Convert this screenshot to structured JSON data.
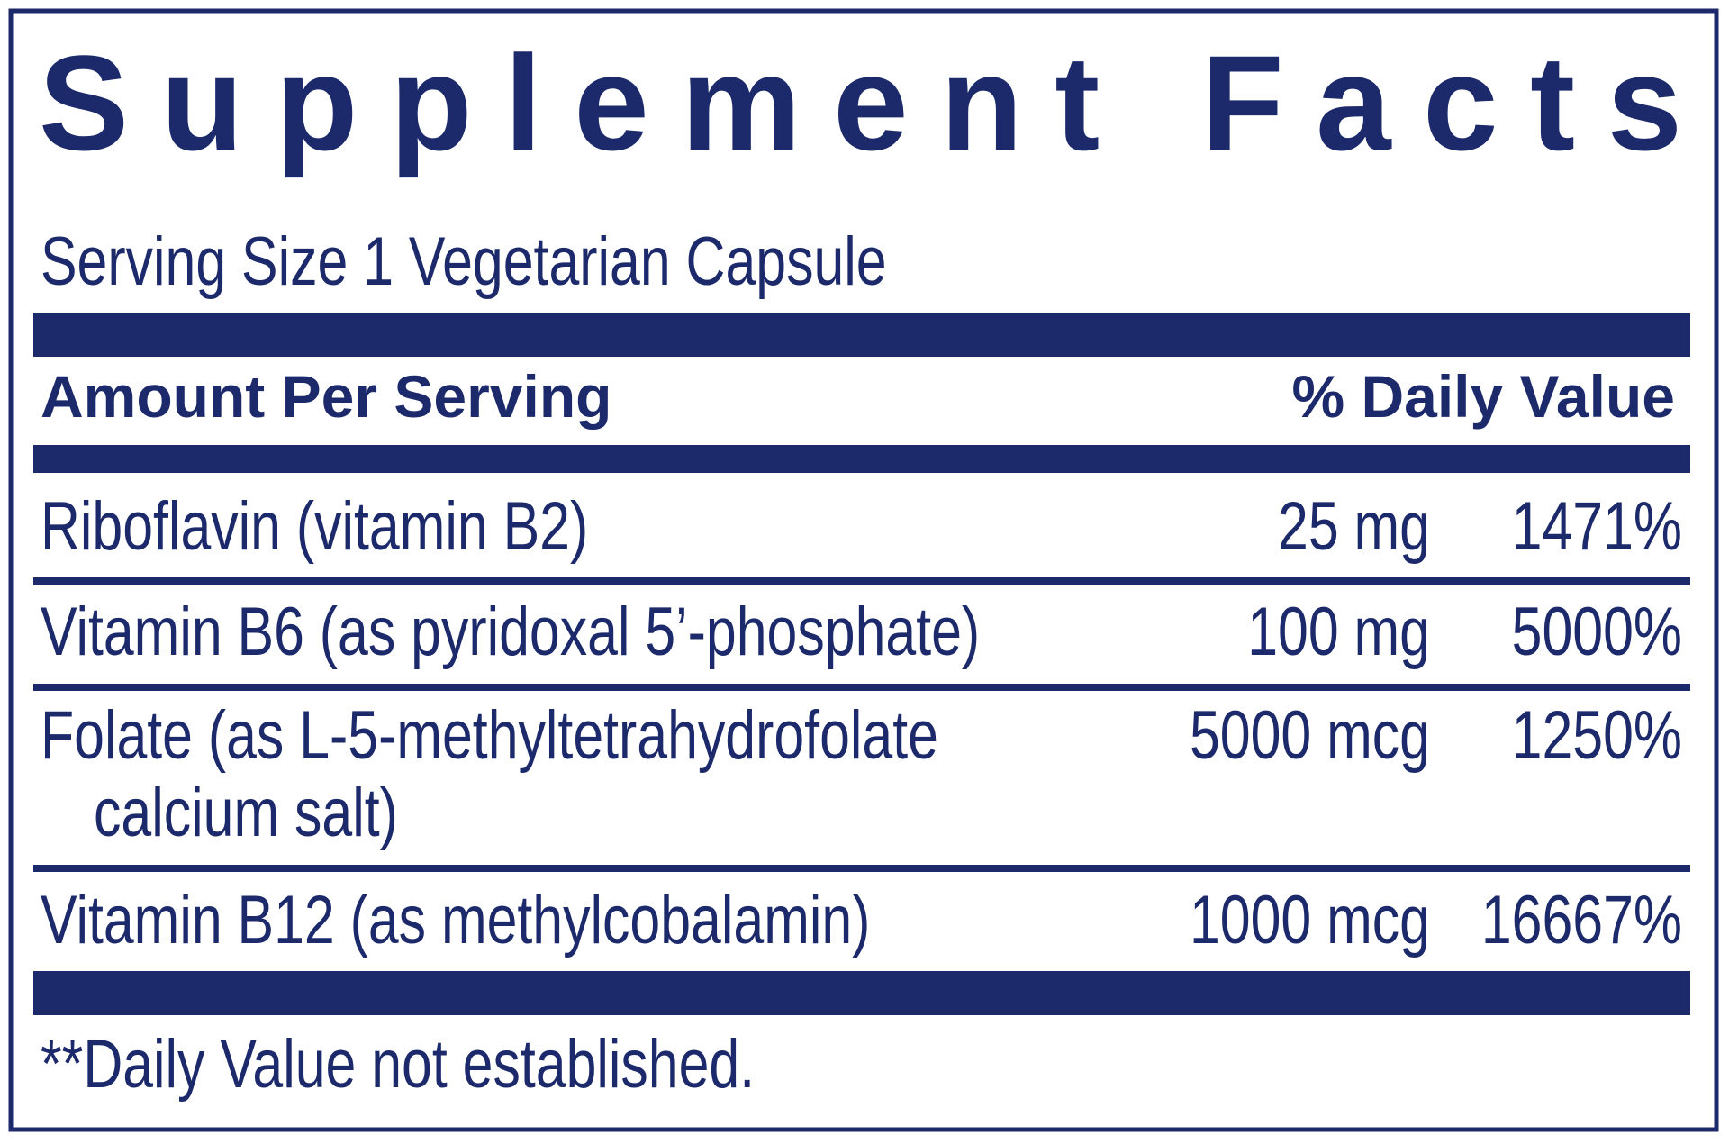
{
  "title": "Supplement Facts",
  "serving_size": "Serving Size 1 Vegetarian Capsule",
  "header": {
    "amount": "Amount Per Serving",
    "daily_value": "% Daily Value"
  },
  "rows": [
    {
      "name": [
        "Riboflavin (vitamin B2)"
      ],
      "amount": "25 mg",
      "daily_value": "1471%"
    },
    {
      "name": [
        "Vitamin B6 (as pyridoxal 5’-phosphate)"
      ],
      "amount": "100 mg",
      "daily_value": "5000%"
    },
    {
      "name": [
        "Folate (as L-5-methyltetrahydrofolate",
        "calcium salt)"
      ],
      "amount": "5000 mcg",
      "daily_value": "1250%"
    },
    {
      "name": [
        "Vitamin B12 (as methylcobalamin)"
      ],
      "amount": "1000 mcg",
      "daily_value": "16667%"
    }
  ],
  "footnote": "**Daily Value not established."
}
